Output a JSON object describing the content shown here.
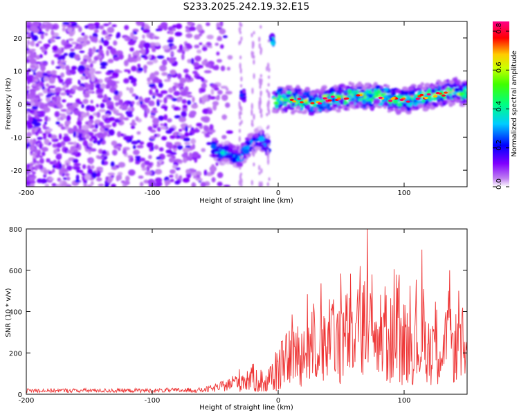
{
  "title": "S233.2025.242.19.32.E15",
  "colors": {
    "snr_line": "#ee3333",
    "frame": "#000000"
  },
  "chart_data": [
    {
      "type": "heatmap",
      "name": "spectrogram",
      "xlabel": "Height of straight line (km)",
      "ylabel": "Frequency (Hz)",
      "xlim": [
        -200,
        150
      ],
      "ylim": [
        -25,
        25
      ],
      "xticks": [
        -200,
        -100,
        0,
        100
      ],
      "xtick_labels": [
        "-200",
        "-100",
        "0",
        "100"
      ],
      "yticks": [
        -20,
        -10,
        0,
        10,
        20
      ],
      "ytick_labels": [
        "-20",
        "-10",
        "0",
        "10",
        "20"
      ],
      "colorbar": {
        "label": "Normalized spectral amplitude",
        "range": [
          0,
          0.85
        ],
        "ticks": [
          0,
          0.2,
          0.4,
          0.6,
          0.8
        ],
        "tick_labels": [
          "0.0",
          "0.2",
          "0.4",
          "0.6",
          "0.8"
        ]
      },
      "features": [
        {
          "label": "noise field",
          "x_range": [
            -200,
            -50
          ],
          "frequency_range": [
            -25,
            25
          ],
          "amplitude": 0.1
        },
        {
          "label": "descending branch",
          "x": [
            -52,
            -45,
            -40,
            -36,
            -30,
            -25,
            -20,
            -15,
            -10,
            -8
          ],
          "frequency": [
            -13,
            -15,
            -14.5,
            -15.5,
            -16,
            -13,
            -12,
            -10,
            -12,
            -13
          ],
          "amplitude": 0.35
        },
        {
          "label": "isolated echo 20 Hz",
          "x": [
            -5
          ],
          "frequency": [
            19.5
          ],
          "amplitude": 0.3
        },
        {
          "label": "isolated echo 3 Hz",
          "x": [
            -28
          ],
          "frequency": [
            2.5
          ],
          "amplitude": 0.2
        },
        {
          "label": "main trace",
          "x": [
            -3,
            10,
            20,
            30,
            40,
            50,
            60,
            70,
            80,
            90,
            100,
            110,
            120,
            130,
            140,
            150
          ],
          "frequency": [
            1.5,
            1.5,
            1,
            0.5,
            1.5,
            2,
            2.5,
            2,
            2.5,
            1.5,
            1,
            2,
            2.5,
            3,
            4,
            3
          ],
          "amplitude": 0.55
        }
      ]
    },
    {
      "type": "line",
      "name": "snr",
      "xlabel": "Height of straight line (km)",
      "ylabel": "SNR (10 * v/v)",
      "xlim": [
        -200,
        150
      ],
      "ylim": [
        0,
        800
      ],
      "xticks": [
        -200,
        -100,
        0,
        100
      ],
      "xtick_labels": [
        "-200",
        "-100",
        "0",
        "100"
      ],
      "yticks": [
        0,
        200,
        400,
        600,
        800
      ],
      "ytick_labels": [
        "0",
        "200",
        "400",
        "600",
        "800"
      ],
      "envelope": {
        "x": [
          -200,
          -100,
          -60,
          -50,
          -40,
          -30,
          -20,
          -10,
          0,
          10,
          20,
          30,
          40,
          50,
          60,
          70,
          80,
          90,
          100,
          110,
          120,
          130,
          140,
          150
        ],
        "mean": [
          18,
          18,
          20,
          30,
          45,
          70,
          80,
          55,
          120,
          190,
          200,
          240,
          260,
          270,
          285,
          280,
          270,
          260,
          250,
          245,
          240,
          235,
          230,
          220
        ],
        "amplitude": [
          10,
          10,
          12,
          20,
          30,
          60,
          70,
          60,
          110,
          140,
          170,
          190,
          200,
          230,
          230,
          240,
          230,
          220,
          210,
          200,
          200,
          190,
          180,
          170
        ]
      },
      "peaks": [
        {
          "x": 71,
          "y": 800
        },
        {
          "x": 114,
          "y": 700
        },
        {
          "x": 65,
          "y": 620
        },
        {
          "x": 92,
          "y": 605
        },
        {
          "x": 136,
          "y": 600
        }
      ]
    }
  ]
}
